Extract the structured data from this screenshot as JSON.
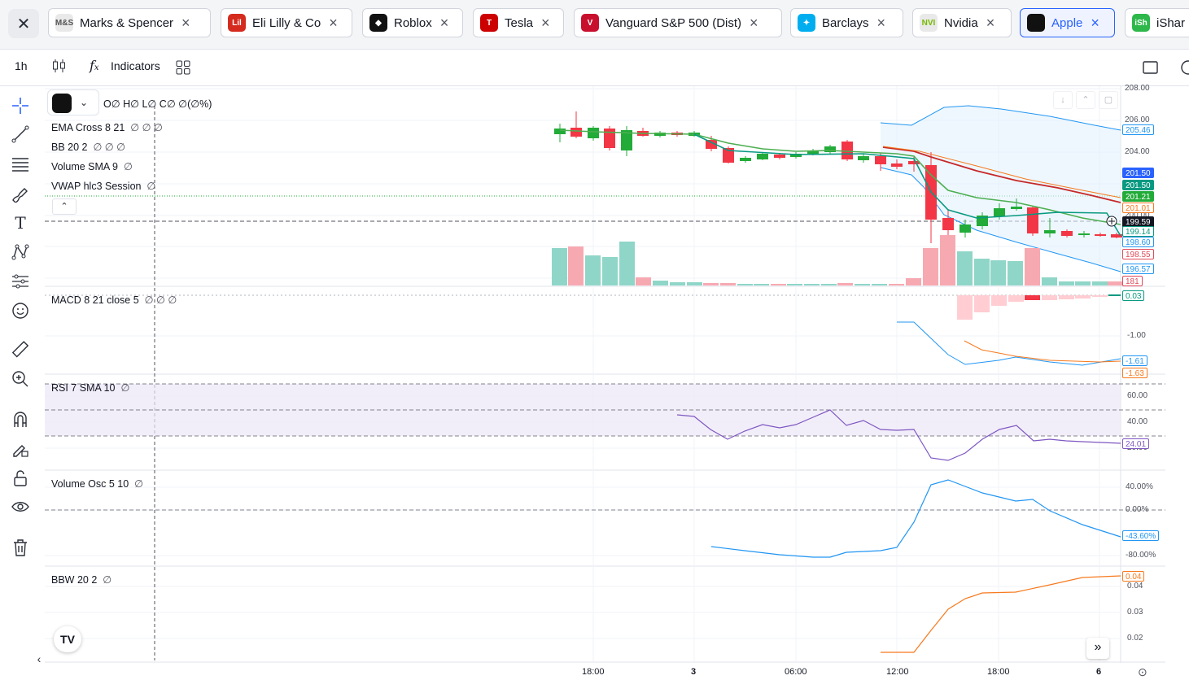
{
  "tabs": [
    {
      "name": "Marks & Spencer",
      "logo_bg": "#e9e9e9",
      "logo_fg": "#555555",
      "logo_text": "M&S",
      "active": false
    },
    {
      "name": "Eli Lilly & Co",
      "logo_bg": "#d52b1e",
      "logo_fg": "#ffffff",
      "logo_text": "Lilly",
      "active": false
    },
    {
      "name": "Roblox",
      "logo_bg": "#111111",
      "logo_fg": "#ffffff",
      "logo_text": "◆",
      "active": false
    },
    {
      "name": "Tesla",
      "logo_bg": "#cc0000",
      "logo_fg": "#ffffff",
      "logo_text": "T",
      "active": false
    },
    {
      "name": "Vanguard S&P 500 (Dist)",
      "logo_bg": "#c8102e",
      "logo_fg": "#ffffff",
      "logo_text": "V",
      "active": false
    },
    {
      "name": "Barclays",
      "logo_bg": "#00aeef",
      "logo_fg": "#ffffff",
      "logo_text": "✦",
      "active": false
    },
    {
      "name": "Nvidia",
      "logo_bg": "#e9e9e9",
      "logo_fg": "#76b900",
      "logo_text": "NVIDIA",
      "active": false
    },
    {
      "name": "Apple",
      "logo_bg": "#111111",
      "logo_fg": "#ffffff",
      "logo_text": "",
      "active": true
    },
    {
      "name": "iShar",
      "logo_bg": "#2eb84b",
      "logo_fg": "#ffffff",
      "logo_text": "iShares",
      "active": false
    }
  ],
  "toolbar": {
    "interval": "1h",
    "indicators_label": "Indicators"
  },
  "legend": {
    "ohlc": "O∅ H∅ L∅ C∅ ∅(∅%)",
    "ema": "EMA Cross 8 21",
    "ema_vals": "∅ ∅ ∅",
    "bb": "BB 20 2",
    "bb_vals": "∅ ∅ ∅",
    "vol": "Volume SMA 9",
    "vol_vals": "∅",
    "vwap": "VWAP hlc3 Session",
    "vwap_vals": "∅",
    "macd": "MACD 8 21 close 5",
    "macd_vals": "∅ ∅ ∅",
    "rsi": "RSI 7 SMA 10",
    "rsi_vals": "∅",
    "osc": "Volume Osc 5 10",
    "osc_vals": "∅",
    "bbw": "BBW 20 2",
    "bbw_vals": "∅"
  },
  "price_axis": [
    "208.00",
    "206.00",
    "204.00",
    "202.00",
    "200.00"
  ],
  "price_tags": [
    {
      "text": "205.46",
      "bg": "#ffffff",
      "fg": "#2196f3",
      "border": "#2196f3"
    },
    {
      "text": "201.50",
      "bg": "#2962ff",
      "fg": "#ffffff",
      "border": "#2962ff"
    },
    {
      "text": "201.50",
      "bg": "#089981",
      "fg": "#ffffff",
      "border": "#089981"
    },
    {
      "text": "201.21",
      "bg": "#22ab38",
      "fg": "#ffffff",
      "border": "#22ab38"
    },
    {
      "text": "201.01",
      "bg": "#ffffff",
      "fg": "#f7791d",
      "border": "#f7791d"
    },
    {
      "text": "199.59",
      "bg": "#131722",
      "fg": "#ffffff",
      "border": "#131722"
    },
    {
      "text": "199.14",
      "bg": "#ffffff",
      "fg": "#089981",
      "border": "#089981"
    },
    {
      "text": "198.60",
      "bg": "#ffffff",
      "fg": "#2196f3",
      "border": "#2196f3"
    },
    {
      "text": "198.55",
      "bg": "#ffffff",
      "fg": "#e04a59",
      "border": "#e04a59"
    },
    {
      "text": "196.57",
      "bg": "#ffffff",
      "fg": "#2196f3",
      "border": "#2196f3"
    },
    {
      "text": "181",
      "bg": "#ffffff",
      "fg": "#e04a59",
      "border": "#e04a59"
    }
  ],
  "macd_axis": [
    "-1.00"
  ],
  "macd_tags": [
    {
      "text": "0.03",
      "bg": "#ffffff",
      "fg": "#089981",
      "border": "#089981"
    },
    {
      "text": "-1.61",
      "bg": "#ffffff",
      "fg": "#2196f3",
      "border": "#2196f3"
    },
    {
      "text": "-1.63",
      "bg": "#ffffff",
      "fg": "#f7791d",
      "border": "#f7791d"
    }
  ],
  "rsi_axis": [
    "60.00",
    "40.00",
    "20.00"
  ],
  "rsi_tag": {
    "text": "24.01",
    "bg": "#ffffff",
    "fg": "#7e57c2",
    "border": "#7e57c2"
  },
  "osc_axis": [
    "40.00%",
    "0.00%",
    "-80.00%"
  ],
  "osc_tag": {
    "text": "-43.60%",
    "bg": "#ffffff",
    "fg": "#2196f3",
    "border": "#2196f3"
  },
  "bbw_axis": [
    "0.04",
    "0.03",
    "0.02"
  ],
  "bbw_tag": {
    "text": "0.04",
    "bg": "#ffffff",
    "fg": "#f7791d",
    "border": "#f7791d"
  },
  "time_axis": [
    {
      "label": "18:00",
      "bold": false
    },
    {
      "label": "3",
      "bold": true
    },
    {
      "label": "06:00",
      "bold": false
    },
    {
      "label": "12:00",
      "bold": false
    },
    {
      "label": "18:00",
      "bold": false
    },
    {
      "label": "6",
      "bold": true
    }
  ],
  "colors": {
    "up": "#22ab38",
    "down": "#f23645",
    "vol_up": "#8fd6c8",
    "vol_down": "#f7a9b1",
    "bb": "#2196f3",
    "ema_fast": "#4caf50",
    "ema_slow": "#c62828",
    "vwap": "#089981",
    "rsi": "#7e57c2",
    "osc": "#2196f3",
    "bbw": "#f7791d"
  }
}
